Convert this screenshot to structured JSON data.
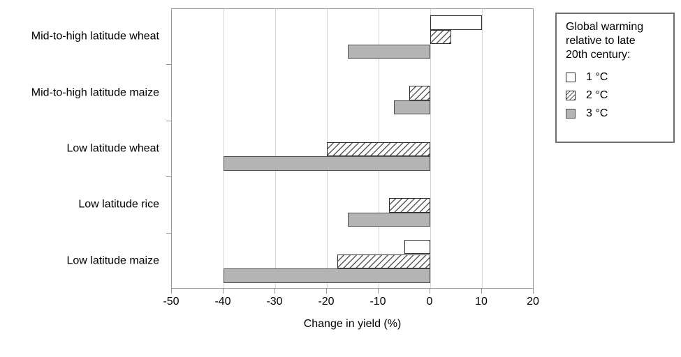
{
  "chart_data": {
    "type": "bar",
    "orientation": "horizontal",
    "title": "",
    "xlabel": "Change in yield (%)",
    "xlim": [
      -50,
      20
    ],
    "xticks": [
      -50,
      -40,
      -30,
      -20,
      -10,
      0,
      10,
      20
    ],
    "grid": true,
    "categories": [
      "Mid-to-high latitude wheat",
      "Mid-to-high latitude maize",
      "Low latitude wheat",
      "Low latitude rice",
      "Low latitude maize"
    ],
    "series": [
      {
        "name": "1 °C",
        "style": "white",
        "values": [
          10,
          null,
          null,
          null,
          -5
        ]
      },
      {
        "name": "2 °C",
        "style": "hatched",
        "values": [
          4,
          -4,
          -20,
          -8,
          -18
        ]
      },
      {
        "name": "3 °C",
        "style": "gray",
        "values": [
          -16,
          -7,
          -40,
          -16,
          -40
        ]
      }
    ],
    "legend": {
      "position": "right",
      "title_lines": [
        "Global warming",
        "relative to late",
        "20th century:"
      ]
    }
  },
  "colors": {
    "bar_gray_fill": "#b4b4b4",
    "bar_gray_border": "#4d4d4d",
    "bar_border": "#2e2e2e",
    "hatch_line": "#5a5a5a",
    "gridline": "#d4d4d4",
    "axis": "#969696",
    "text": "#000000"
  }
}
